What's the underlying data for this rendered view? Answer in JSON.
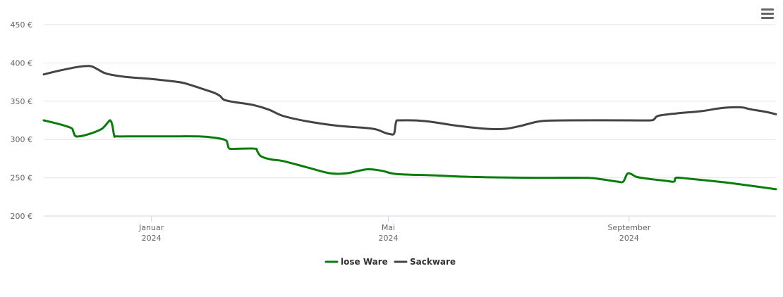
{
  "menu": {
    "icon": "hamburger-menu-icon"
  },
  "chart_data": {
    "type": "line",
    "title": "",
    "xlabel": "",
    "ylabel": "",
    "ylim": [
      200,
      450
    ],
    "y_ticks": [
      {
        "value": 200,
        "label": "200 €"
      },
      {
        "value": 250,
        "label": "250 €"
      },
      {
        "value": 300,
        "label": "300 €"
      },
      {
        "value": 350,
        "label": "350 €"
      },
      {
        "value": 400,
        "label": "400 €"
      },
      {
        "value": 450,
        "label": "450 €"
      }
    ],
    "xlim": [
      "2023-11-07",
      "2024-11-15"
    ],
    "x_ticks": [
      {
        "date": "2024-01-01",
        "label": "Januar",
        "sublabel": "2024"
      },
      {
        "date": "2024-05-01",
        "label": "Mai",
        "sublabel": "2024"
      },
      {
        "date": "2024-09-01",
        "label": "September",
        "sublabel": "2024"
      }
    ],
    "grid": true,
    "legend_position": "bottom-center",
    "series": [
      {
        "name": "lose Ware",
        "color": "#087d0b",
        "points": [
          [
            "2023-11-07",
            325
          ],
          [
            "2023-11-15",
            320
          ],
          [
            "2023-11-21",
            315
          ],
          [
            "2023-11-22",
            311
          ],
          [
            "2023-11-23",
            305
          ],
          [
            "2023-11-25",
            304
          ],
          [
            "2023-11-30",
            307
          ],
          [
            "2023-12-06",
            313
          ],
          [
            "2023-12-08",
            317
          ],
          [
            "2023-12-10",
            323
          ],
          [
            "2023-12-11",
            325
          ],
          [
            "2023-12-12",
            319
          ],
          [
            "2023-12-13",
            305
          ],
          [
            "2023-12-14",
            304
          ],
          [
            "2023-12-20",
            304
          ],
          [
            "2024-01-05",
            304
          ],
          [
            "2024-01-25",
            304
          ],
          [
            "2024-02-03",
            302
          ],
          [
            "2024-02-08",
            299
          ],
          [
            "2024-02-09",
            293
          ],
          [
            "2024-02-10",
            288
          ],
          [
            "2024-02-15",
            288
          ],
          [
            "2024-02-23",
            288
          ],
          [
            "2024-02-24",
            285
          ],
          [
            "2024-02-26",
            278
          ],
          [
            "2024-03-02",
            274
          ],
          [
            "2024-03-08",
            272
          ],
          [
            "2024-03-20",
            264
          ],
          [
            "2024-04-01",
            256
          ],
          [
            "2024-04-10",
            256
          ],
          [
            "2024-04-20",
            261
          ],
          [
            "2024-04-28",
            259
          ],
          [
            "2024-05-05",
            255
          ],
          [
            "2024-05-25",
            253
          ],
          [
            "2024-06-15",
            251
          ],
          [
            "2024-07-15",
            250
          ],
          [
            "2024-08-10",
            250
          ],
          [
            "2024-08-18",
            248
          ],
          [
            "2024-08-26",
            245
          ],
          [
            "2024-08-29",
            245
          ],
          [
            "2024-08-31",
            255
          ],
          [
            "2024-09-02",
            255
          ],
          [
            "2024-09-05",
            251
          ],
          [
            "2024-09-13",
            248
          ],
          [
            "2024-09-20",
            246
          ],
          [
            "2024-09-24",
            245
          ],
          [
            "2024-09-25",
            250
          ],
          [
            "2024-10-01",
            249
          ],
          [
            "2024-10-20",
            244
          ],
          [
            "2024-11-01",
            240
          ],
          [
            "2024-11-15",
            235
          ]
        ]
      },
      {
        "name": "Sackware",
        "color": "#434348",
        "points": [
          [
            "2023-11-07",
            385
          ],
          [
            "2023-11-15",
            390
          ],
          [
            "2023-11-25",
            395
          ],
          [
            "2023-11-30",
            396
          ],
          [
            "2023-12-02",
            395
          ],
          [
            "2023-12-05",
            391
          ],
          [
            "2023-12-09",
            386
          ],
          [
            "2023-12-18",
            382
          ],
          [
            "2024-01-01",
            379
          ],
          [
            "2024-01-15",
            375
          ],
          [
            "2024-01-20",
            372
          ],
          [
            "2024-01-26",
            367
          ],
          [
            "2024-02-02",
            361
          ],
          [
            "2024-02-05",
            357
          ],
          [
            "2024-02-07",
            352
          ],
          [
            "2024-02-12",
            349
          ],
          [
            "2024-02-22",
            345
          ],
          [
            "2024-03-01",
            339
          ],
          [
            "2024-03-08",
            331
          ],
          [
            "2024-03-20",
            324
          ],
          [
            "2024-04-05",
            318
          ],
          [
            "2024-04-20",
            315
          ],
          [
            "2024-04-25",
            313
          ],
          [
            "2024-04-29",
            309
          ],
          [
            "2024-05-02",
            307
          ],
          [
            "2024-05-04",
            308
          ],
          [
            "2024-05-05",
            323
          ],
          [
            "2024-05-07",
            325
          ],
          [
            "2024-05-20",
            324
          ],
          [
            "2024-06-05",
            318
          ],
          [
            "2024-06-20",
            314
          ],
          [
            "2024-06-30",
            314
          ],
          [
            "2024-07-08",
            318
          ],
          [
            "2024-07-18",
            324
          ],
          [
            "2024-08-01",
            325
          ],
          [
            "2024-09-01",
            325
          ],
          [
            "2024-09-12",
            325
          ],
          [
            "2024-09-14",
            327
          ],
          [
            "2024-09-16",
            331
          ],
          [
            "2024-09-25",
            334
          ],
          [
            "2024-10-08",
            337
          ],
          [
            "2024-10-18",
            341
          ],
          [
            "2024-10-28",
            342
          ],
          [
            "2024-11-01",
            340
          ],
          [
            "2024-11-03",
            339
          ],
          [
            "2024-11-10",
            336
          ],
          [
            "2024-11-15",
            333
          ]
        ]
      }
    ]
  }
}
